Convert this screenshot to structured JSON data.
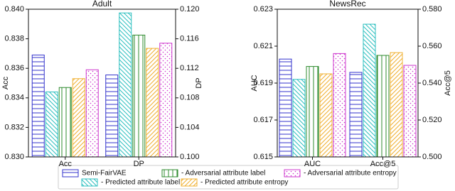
{
  "chart_data": [
    {
      "type": "bar",
      "title": "Adult",
      "ylabel": "Acc",
      "y2label": "DP",
      "categories": [
        "Acc",
        "DP"
      ],
      "category_axes": [
        "y",
        "y2"
      ],
      "ylim": [
        0.83,
        0.84
      ],
      "yticks": [
        {
          "value": 0.83,
          "label": "0.830"
        },
        0.832,
        0.834,
        0.836,
        0.838,
        {
          "value": 0.84,
          "label": "0.840"
        }
      ],
      "y2lim": [
        0.1,
        0.12
      ],
      "y2ticks": [
        {
          "value": 0.1,
          "label": "0.100"
        },
        0.104,
        0.108,
        0.112,
        0.116,
        {
          "value": 0.12,
          "label": "0.120"
        }
      ],
      "series": [
        {
          "values": [
            0.8369,
            0.1111
          ]
        },
        {
          "values": [
            0.8344,
            0.1195
          ]
        },
        {
          "values": [
            0.8347,
            0.1165
          ]
        },
        {
          "values": [
            0.8353,
            0.1147
          ]
        },
        {
          "values": [
            0.8359,
            0.1154
          ]
        }
      ]
    },
    {
      "type": "bar",
      "title": "NewsRec",
      "ylabel": "AUC",
      "y2label": "Acc@5",
      "categories": [
        "AUC",
        "Acc@5"
      ],
      "category_axes": [
        "y",
        "y2"
      ],
      "ylim": [
        0.615,
        0.623
      ],
      "yticks": [
        0.615,
        0.617,
        0.619,
        0.621,
        0.623
      ],
      "y2lim": [
        0.5,
        0.58
      ],
      "y2ticks": [
        {
          "value": 0.5,
          "label": "0.500"
        },
        {
          "value": 0.52,
          "label": "0.520"
        },
        {
          "value": 0.54,
          "label": "0.540"
        },
        {
          "value": 0.56,
          "label": "0.560"
        },
        {
          "value": 0.58,
          "label": "0.580"
        }
      ],
      "series": [
        {
          "values": [
            0.6203,
            0.5458
          ]
        },
        {
          "values": [
            0.6192,
            0.5719
          ]
        },
        {
          "values": [
            0.6199,
            0.555
          ]
        },
        {
          "values": [
            0.6195,
            0.5565
          ]
        },
        {
          "values": [
            0.6206,
            0.5496
          ]
        }
      ]
    }
  ],
  "legend": [
    {
      "name": "Semi-FairVAE",
      "color": "#3333cc",
      "hatch": "-"
    },
    {
      "name": "- Predicted attribute label",
      "color": "#2bbfbf",
      "hatch": "\\"
    },
    {
      "name": "- Adversarial attribute label",
      "color": "#2e8b2e",
      "hatch": "|"
    },
    {
      "name": "- Predicted attribute entropy",
      "color": "#f0b030",
      "hatch": "/"
    },
    {
      "name": "- Adversarial attribute entropy",
      "color": "#cc33cc",
      "hatch": "."
    }
  ]
}
